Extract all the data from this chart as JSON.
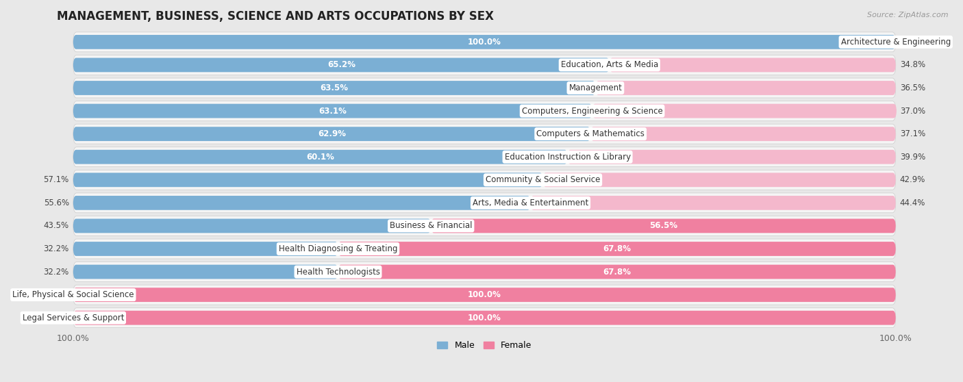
{
  "title": "MANAGEMENT, BUSINESS, SCIENCE AND ARTS OCCUPATIONS BY SEX",
  "source": "Source: ZipAtlas.com",
  "categories": [
    "Architecture & Engineering",
    "Education, Arts & Media",
    "Management",
    "Computers, Engineering & Science",
    "Computers & Mathematics",
    "Education Instruction & Library",
    "Community & Social Service",
    "Arts, Media & Entertainment",
    "Business & Financial",
    "Health Diagnosing & Treating",
    "Health Technologists",
    "Life, Physical & Social Science",
    "Legal Services & Support"
  ],
  "male": [
    100.0,
    65.2,
    63.5,
    63.1,
    62.9,
    60.1,
    57.1,
    55.6,
    43.5,
    32.2,
    32.2,
    0.0,
    0.0
  ],
  "female": [
    0.0,
    34.8,
    36.5,
    37.0,
    37.1,
    39.9,
    42.9,
    44.4,
    56.5,
    67.8,
    67.8,
    100.0,
    100.0
  ],
  "male_color": "#7bafd4",
  "female_color": "#f080a0",
  "female_color_light": "#f4b8cc",
  "male_color_light": "#a8cce0",
  "background_color": "#e8e8e8",
  "bar_background": "#f5f5f5",
  "bar_height": 0.62,
  "title_fontsize": 12,
  "label_fontsize": 8.5,
  "cat_fontsize": 8.5,
  "tick_fontsize": 9,
  "legend_fontsize": 9,
  "male_label_threshold": 60.0,
  "female_label_threshold": 56.0
}
